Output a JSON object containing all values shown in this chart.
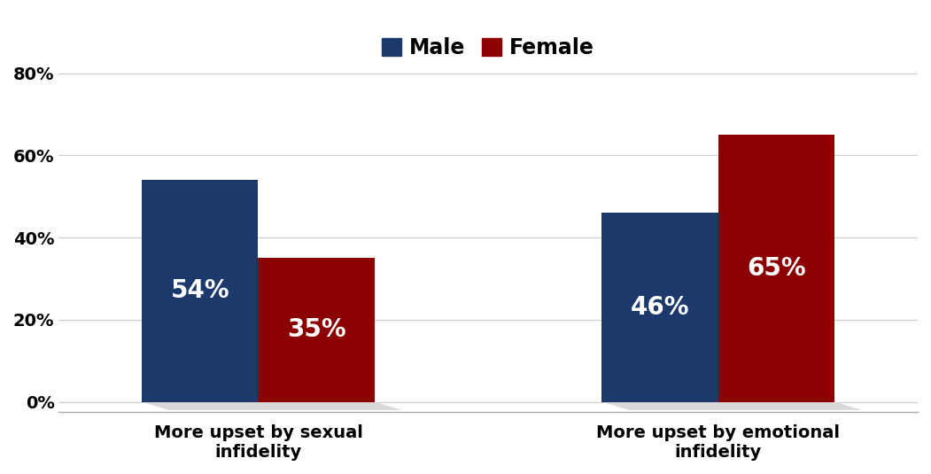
{
  "categories": [
    "More upset by sexual\ninfidelity",
    "More upset by emotional\ninfidelity"
  ],
  "male_values": [
    54,
    46
  ],
  "female_values": [
    35,
    65
  ],
  "male_color": "#1b3a6b",
  "female_color": "#8b0000",
  "bar_width": 0.38,
  "group_positions": [
    1.0,
    2.5
  ],
  "ylim": [
    0,
    83
  ],
  "yticks": [
    0,
    20,
    40,
    60,
    80
  ],
  "ytick_labels": [
    "0%",
    "20%",
    "40%",
    "60%",
    "80%"
  ],
  "value_label_fontsize": 20,
  "tick_label_fontsize": 14,
  "legend_fontsize": 17,
  "background_color": "#ffffff",
  "plot_bg_color": "#ffffff",
  "grid_color": "#cccccc",
  "shadow_color": "#d8d8d8"
}
